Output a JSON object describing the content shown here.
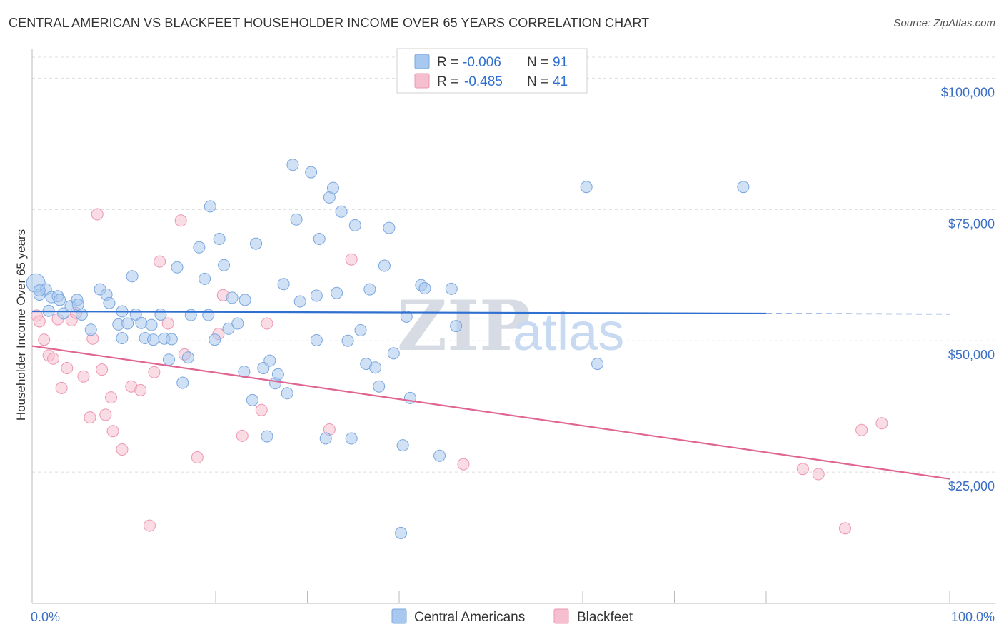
{
  "header": {
    "title": "CENTRAL AMERICAN VS BLACKFEET HOUSEHOLDER INCOME OVER 65 YEARS CORRELATION CHART",
    "source": "Source: ZipAtlas.com"
  },
  "watermark": {
    "zip": "ZIP",
    "atlas": "atlas"
  },
  "colors": {
    "blue_fill": "#a9c8ef",
    "blue_stroke": "#7aa7de",
    "blue_line": "#2f6fd0",
    "pink_fill": "#f6bfd0",
    "pink_stroke": "#ec97b1",
    "pink_line": "#e06593",
    "grid": "#dddddd",
    "axis_label": "#3a6fc4"
  },
  "legend": {
    "rows": [
      {
        "r_label": "R =",
        "r_value": "-0.006",
        "n_label": "N =",
        "n_value": "91"
      },
      {
        "r_label": "R =",
        "r_value": "-0.485",
        "n_label": "N =",
        "n_value": "41"
      }
    ]
  },
  "bottom_legend": {
    "items": [
      "Central Americans",
      "Blackfeet"
    ]
  },
  "chart_data": {
    "type": "scatter",
    "title": "CENTRAL AMERICAN VS BLACKFEET HOUSEHOLDER INCOME OVER 65 YEARS CORRELATION CHART",
    "xlabel": "",
    "ylabel": "Householder Income Over 65 years",
    "xlim": [
      0,
      100
    ],
    "ylim": [
      0,
      104000
    ],
    "x_tick_labels": [
      "0.0%",
      "100.0%"
    ],
    "y_ticks": [
      25000,
      50000,
      75000,
      100000
    ],
    "y_tick_labels": [
      "$25,000",
      "$50,000",
      "$75,000",
      "$100,000"
    ],
    "series": [
      {
        "name": "Central Americans",
        "R": -0.006,
        "N": 91,
        "trend": {
          "x0": 0,
          "y0": 55600,
          "x1": 80,
          "y1": 55200,
          "dash_to": 100
        },
        "points": [
          [
            0.4,
            61000
          ],
          [
            0.8,
            58800
          ],
          [
            1.5,
            59800
          ],
          [
            1.8,
            55700
          ],
          [
            2.1,
            58300
          ],
          [
            2.8,
            58500
          ],
          [
            3.0,
            57800
          ],
          [
            3.4,
            55200
          ],
          [
            4.2,
            56600
          ],
          [
            4.9,
            57800
          ],
          [
            5.0,
            56900
          ],
          [
            6.4,
            52100
          ],
          [
            7.4,
            59800
          ],
          [
            8.1,
            58800
          ],
          [
            8.4,
            57200
          ],
          [
            9.4,
            53100
          ],
          [
            9.8,
            50500
          ],
          [
            10.4,
            53300
          ],
          [
            10.9,
            62300
          ],
          [
            11.3,
            55000
          ],
          [
            11.9,
            53400
          ],
          [
            12.3,
            50500
          ],
          [
            13.0,
            53000
          ],
          [
            13.2,
            50200
          ],
          [
            14.0,
            55000
          ],
          [
            14.4,
            50400
          ],
          [
            14.9,
            46400
          ],
          [
            15.2,
            50300
          ],
          [
            15.8,
            64000
          ],
          [
            16.4,
            42000
          ],
          [
            17.0,
            46800
          ],
          [
            17.3,
            54900
          ],
          [
            18.2,
            67800
          ],
          [
            18.8,
            61800
          ],
          [
            19.2,
            54900
          ],
          [
            19.4,
            75600
          ],
          [
            19.9,
            50200
          ],
          [
            20.4,
            69400
          ],
          [
            20.9,
            64400
          ],
          [
            21.4,
            52300
          ],
          [
            21.8,
            58200
          ],
          [
            22.4,
            53300
          ],
          [
            23.1,
            44100
          ],
          [
            23.2,
            57800
          ],
          [
            24.0,
            38700
          ],
          [
            24.4,
            68500
          ],
          [
            25.2,
            44800
          ],
          [
            25.6,
            31800
          ],
          [
            25.9,
            46200
          ],
          [
            26.5,
            41900
          ],
          [
            26.8,
            43600
          ],
          [
            27.4,
            60800
          ],
          [
            27.8,
            40000
          ],
          [
            28.4,
            83500
          ],
          [
            28.8,
            73100
          ],
          [
            29.2,
            57500
          ],
          [
            30.4,
            82100
          ],
          [
            31.0,
            58600
          ],
          [
            31.0,
            50100
          ],
          [
            31.3,
            69400
          ],
          [
            32.0,
            31400
          ],
          [
            32.4,
            77300
          ],
          [
            32.8,
            79100
          ],
          [
            33.2,
            59100
          ],
          [
            33.7,
            74600
          ],
          [
            34.4,
            50000
          ],
          [
            34.8,
            31400
          ],
          [
            35.2,
            72000
          ],
          [
            35.8,
            52000
          ],
          [
            36.4,
            45600
          ],
          [
            36.8,
            59800
          ],
          [
            37.4,
            44900
          ],
          [
            37.8,
            41300
          ],
          [
            38.4,
            64300
          ],
          [
            38.9,
            71500
          ],
          [
            39.4,
            47600
          ],
          [
            40.2,
            13400
          ],
          [
            40.4,
            30100
          ],
          [
            40.8,
            54600
          ],
          [
            41.2,
            39100
          ],
          [
            42.4,
            60600
          ],
          [
            42.8,
            60000
          ],
          [
            44.4,
            28100
          ],
          [
            45.7,
            59900
          ],
          [
            46.2,
            52800
          ],
          [
            60.4,
            79300
          ],
          [
            61.6,
            45600
          ],
          [
            77.5,
            79300
          ],
          [
            0.8,
            59600
          ],
          [
            5.4,
            55000
          ],
          [
            9.8,
            55600
          ]
        ]
      },
      {
        "name": "Blackfeet",
        "R": -0.485,
        "N": 41,
        "trend": {
          "x0": 0,
          "y0": 49000,
          "x1": 100,
          "y1": 23700
        },
        "points": [
          [
            0.5,
            54800
          ],
          [
            0.8,
            53700
          ],
          [
            1.3,
            50200
          ],
          [
            1.8,
            47200
          ],
          [
            2.3,
            46600
          ],
          [
            2.8,
            54100
          ],
          [
            3.2,
            41000
          ],
          [
            3.8,
            44800
          ],
          [
            4.3,
            53900
          ],
          [
            4.8,
            55300
          ],
          [
            5.6,
            43200
          ],
          [
            6.3,
            35400
          ],
          [
            6.6,
            50400
          ],
          [
            7.1,
            74100
          ],
          [
            7.6,
            44500
          ],
          [
            8.0,
            35900
          ],
          [
            8.6,
            39200
          ],
          [
            8.8,
            32800
          ],
          [
            9.8,
            29300
          ],
          [
            10.8,
            41300
          ],
          [
            11.8,
            40600
          ],
          [
            12.8,
            14800
          ],
          [
            13.3,
            44000
          ],
          [
            13.9,
            65100
          ],
          [
            14.8,
            53300
          ],
          [
            16.2,
            72900
          ],
          [
            16.6,
            47400
          ],
          [
            18.0,
            27800
          ],
          [
            20.3,
            51300
          ],
          [
            20.8,
            58700
          ],
          [
            22.9,
            31900
          ],
          [
            25.0,
            36800
          ],
          [
            25.6,
            53300
          ],
          [
            32.4,
            33100
          ],
          [
            34.8,
            65500
          ],
          [
            47.0,
            26500
          ],
          [
            84.0,
            25600
          ],
          [
            85.7,
            24600
          ],
          [
            88.6,
            14300
          ],
          [
            90.4,
            33000
          ],
          [
            92.6,
            34300
          ]
        ]
      }
    ]
  }
}
